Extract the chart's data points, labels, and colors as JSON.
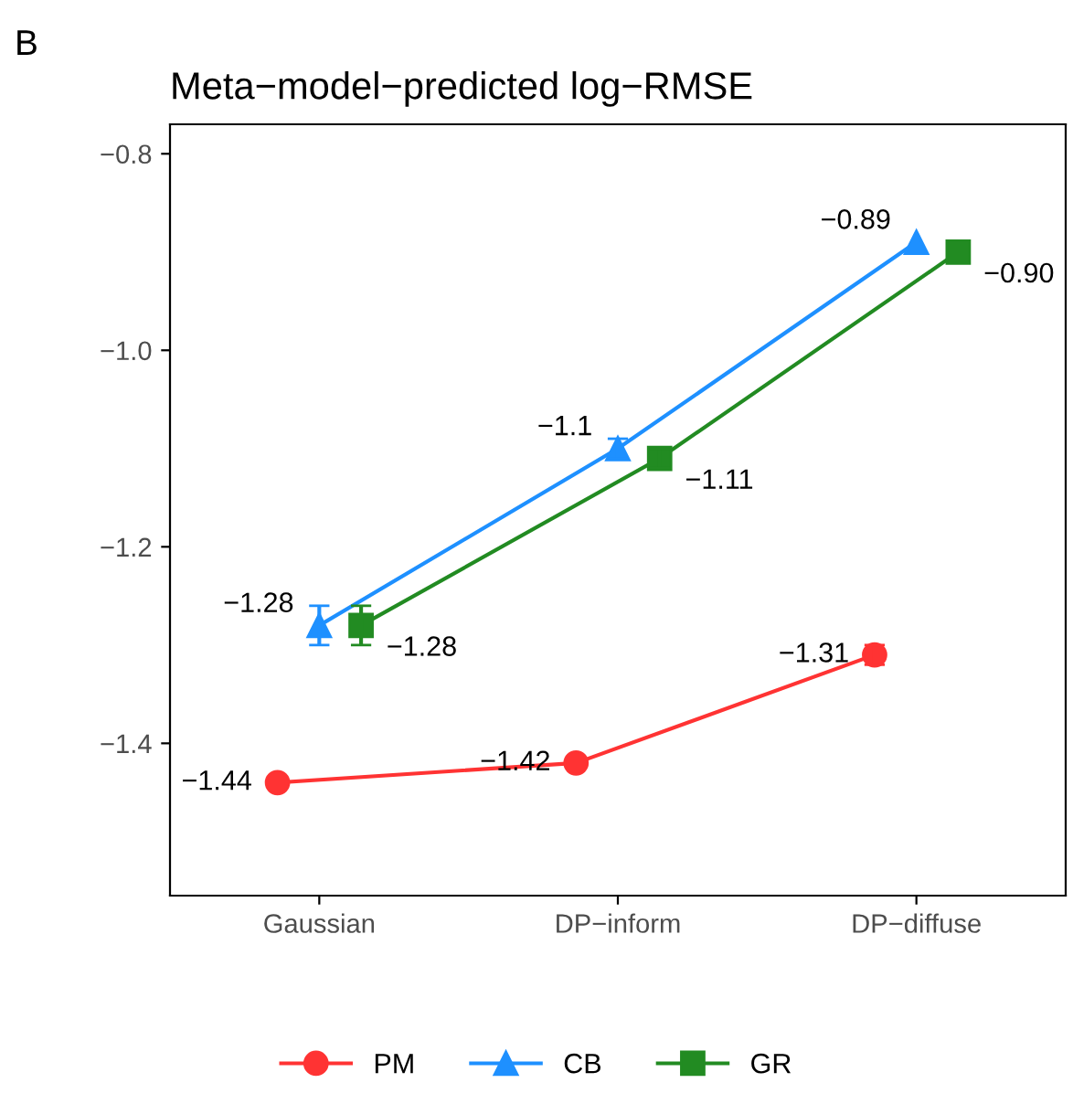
{
  "chart_data": {
    "type": "line",
    "title": "Meta−model−predicted log−RMSE",
    "annotations": [
      "B"
    ],
    "categories": [
      "Gaussian",
      "DP−inform",
      "DP−diffuse"
    ],
    "series": [
      {
        "name": "PM",
        "color": "#ff3333",
        "marker": "circle",
        "values": [
          -1.44,
          -1.42,
          -1.31
        ],
        "errors": [
          null,
          null,
          0.01
        ],
        "value_labels": [
          "−1.44",
          "−1.42",
          "−1.31"
        ]
      },
      {
        "name": "CB",
        "color": "#1e90ff",
        "marker": "triangle",
        "values": [
          -1.28,
          -1.1,
          -0.89
        ],
        "errors": [
          0.02,
          0.01,
          null
        ],
        "value_labels": [
          "−1.28",
          "−1.1",
          "−0.89"
        ]
      },
      {
        "name": "GR",
        "color": "#228b22",
        "marker": "square",
        "values": [
          -1.28,
          -1.11,
          -0.9
        ],
        "errors": [
          0.02,
          0.01,
          null
        ],
        "value_labels": [
          "−1.28",
          "−1.11",
          "−0.90"
        ]
      }
    ],
    "ylim": [
      -1.555,
      -0.77
    ],
    "yticks": [
      {
        "value": -1.4,
        "label": "−1.4"
      },
      {
        "value": -1.2,
        "label": "−1.2"
      },
      {
        "value": -1.0,
        "label": "−1.0"
      },
      {
        "value": -0.8,
        "label": "−0.8"
      }
    ],
    "grid": false,
    "legend": "bottom",
    "line_style": "solid"
  }
}
